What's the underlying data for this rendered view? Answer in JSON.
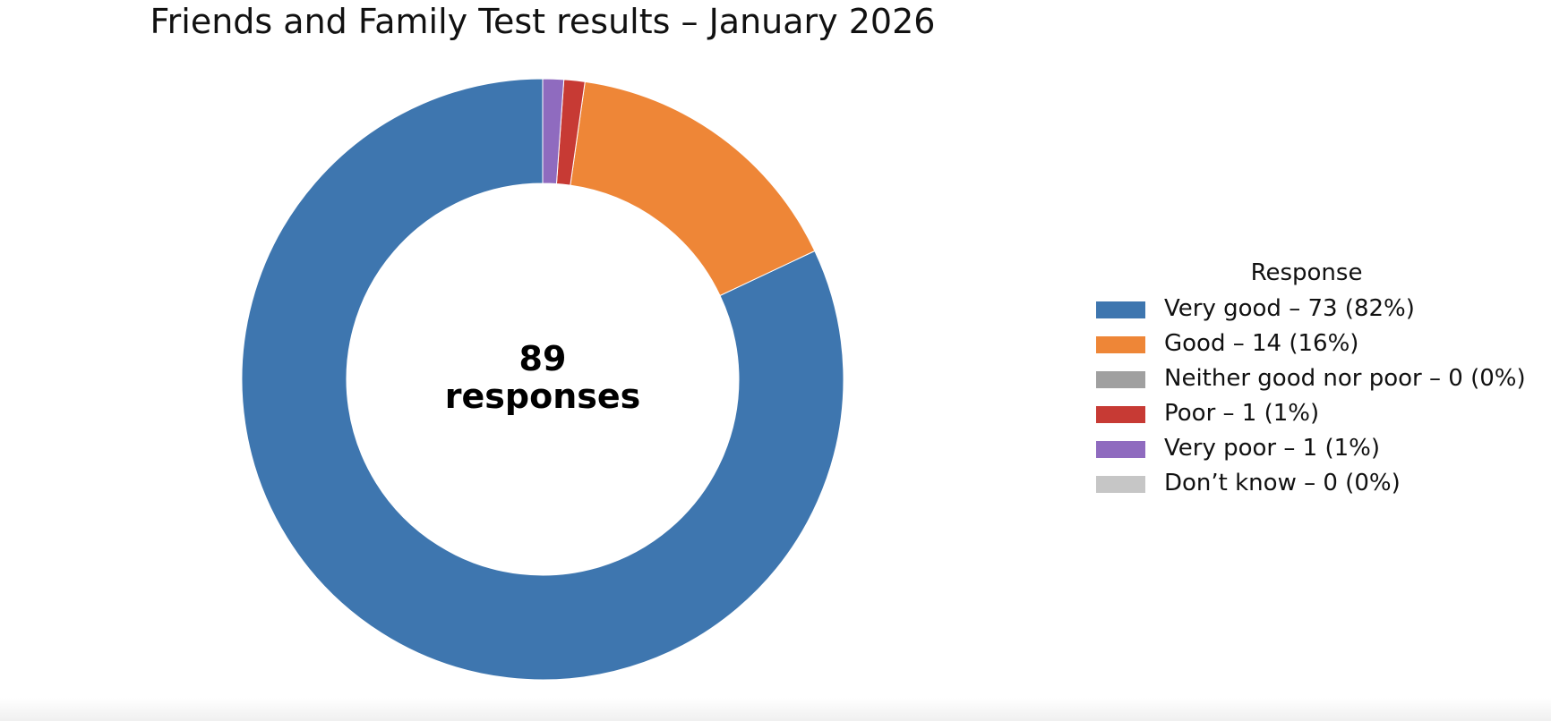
{
  "chart_data": {
    "type": "pie",
    "variant": "donut",
    "title": "Friends and Family Test results – January 2026",
    "center_label_line1": "89",
    "center_label_line2": "responses",
    "total": 89,
    "legend_title": "Response",
    "legend_placement": "right",
    "start": "top",
    "direction": "counterclockwise",
    "slices": [
      {
        "label": "Very good – 73 (82%)",
        "category": "Very good",
        "value": 73,
        "percent": 82,
        "color": "#3E76AF"
      },
      {
        "label": "Good – 14 (16%)",
        "category": "Good",
        "value": 14,
        "percent": 16,
        "color": "#EE8637"
      },
      {
        "label": "Neither good nor poor – 0 (0%)",
        "category": "Neither good nor poor",
        "value": 0,
        "percent": 0,
        "color": "#A0A0A0"
      },
      {
        "label": "Poor – 1 (1%)",
        "category": "Poor",
        "value": 1,
        "percent": 1,
        "color": "#C73A34"
      },
      {
        "label": "Very poor – 1 (1%)",
        "category": "Very poor",
        "value": 1,
        "percent": 1,
        "color": "#8F6BBF"
      },
      {
        "label": "Don’t know – 0 (0%)",
        "category": "Don’t know",
        "value": 0,
        "percent": 0,
        "color": "#C6C6C6"
      }
    ]
  }
}
